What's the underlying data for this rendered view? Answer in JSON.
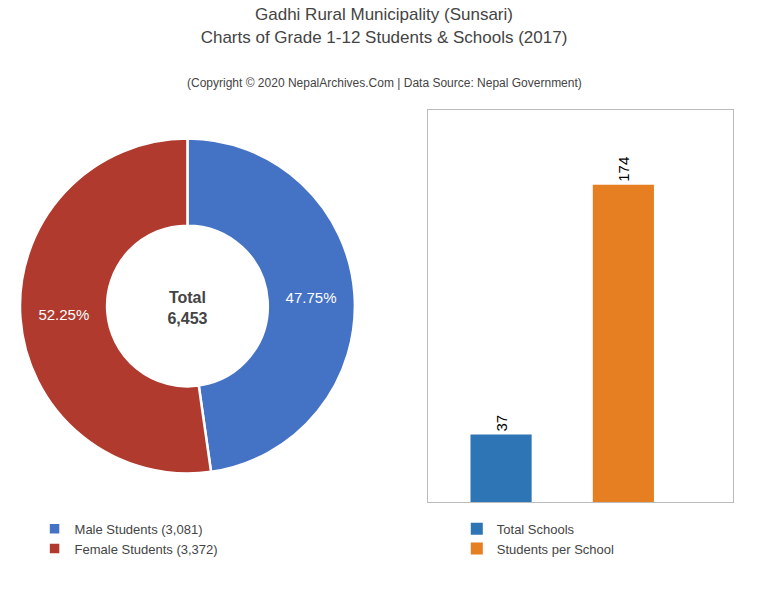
{
  "title": "Gadhi Rural Municipality (Sunsari)\nCharts of Grade 1-12 Students & Schools (2017)",
  "subtitle": "(Copyright © 2020 NepalArchives.Com | Data Source: Nepal Government)",
  "chart_data": [
    {
      "type": "pie",
      "categories": [
        "Male Students (3,081)",
        "Female Students (3,372)"
      ],
      "values": [
        47.75,
        52.25
      ],
      "value_labels": [
        "47.75%",
        "52.25%"
      ],
      "colors": [
        "#4472c4",
        "#b03a2e"
      ],
      "data_labels": true,
      "annotations": [
        "Total",
        "6,453"
      ],
      "legend": "bottom"
    },
    {
      "type": "bar",
      "categories": [
        "Total Schools",
        "Students per School"
      ],
      "values": [
        37,
        174
      ],
      "colors": [
        "#2e75b6",
        "#e67e22"
      ],
      "ylim": [
        0,
        215
      ],
      "yticks": [],
      "grid": false,
      "tick_labels": false,
      "data_labels": true,
      "legend": "bottom"
    }
  ]
}
